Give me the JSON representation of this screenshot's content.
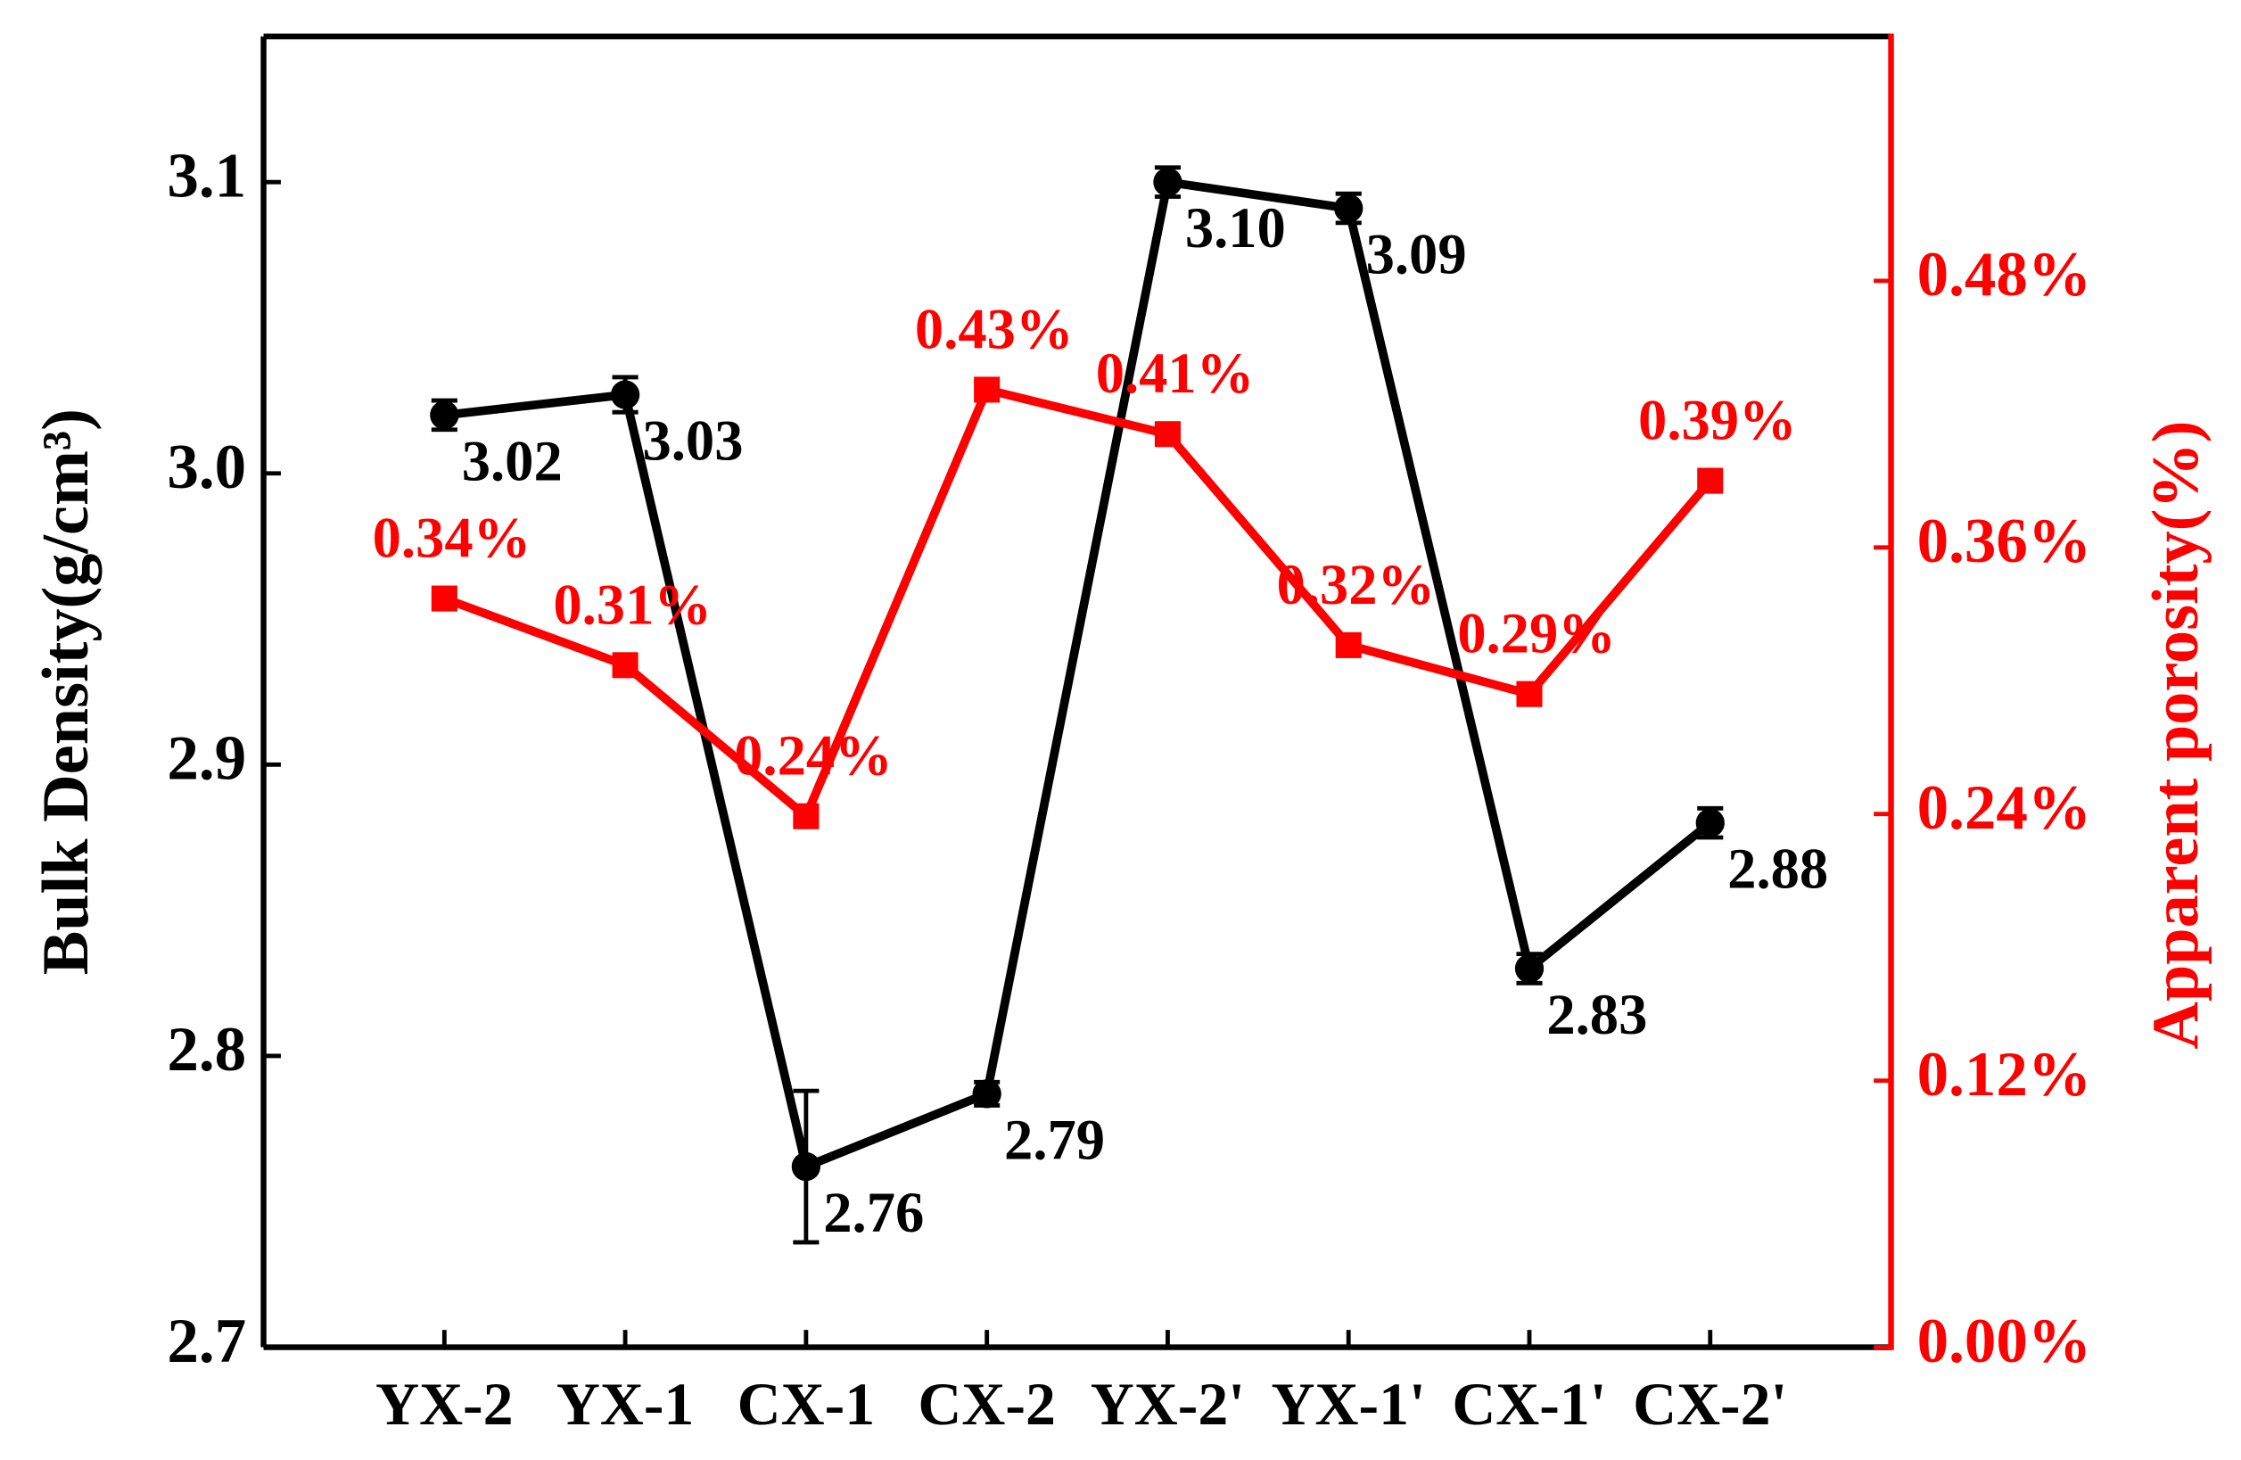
{
  "chart_data": {
    "type": "line",
    "y_label": "Bulk Density(g/cm³)",
    "y2_label": "Apparent porosity(%)",
    "categories": [
      "YX-2",
      "YX-1",
      "CX-1",
      "CX-2",
      "YX-2'",
      "YX-1'",
      "CX-1'",
      "CX-2'"
    ],
    "ylim": [
      2.7,
      3.15
    ],
    "yticks": [
      2.7,
      2.8,
      2.9,
      {
        "value": 3,
        "label": "3.0"
      },
      3.1
    ],
    "y2lim": [
      0,
      0.59
    ],
    "y2ticks": [
      {
        "value": 0,
        "label": "0.00%"
      },
      {
        "value": 0.12,
        "label": "0.12%"
      },
      {
        "value": 0.24,
        "label": "0.24%"
      },
      {
        "value": 0.36,
        "label": "0.36%"
      },
      {
        "value": 0.48,
        "label": "0.48%"
      }
    ],
    "series": [
      {
        "color": "#000000",
        "marker": "circle",
        "values": [
          3.02,
          3.027,
          2.762,
          2.787,
          3.1,
          3.091,
          2.83,
          2.88
        ],
        "errors": [
          0.005,
          0.006,
          0.026,
          0.004,
          0.005,
          0.005,
          0.005,
          0.005
        ],
        "value_labels": [
          "3.02",
          "3.03",
          "2.76",
          "2.79",
          "3.10",
          "3.09",
          "2.83",
          "2.88"
        ]
      },
      {
        "color": "#ff0000",
        "marker": "square",
        "axis": "y2",
        "values": [
          0.337,
          0.307,
          0.239,
          0.431,
          0.411,
          0.316,
          0.294,
          0.39
        ],
        "value_labels": [
          "0.34%",
          "0.31%",
          "0.24%",
          "0.43%",
          "0.41%",
          "0.32%",
          "0.29%",
          "0.39%"
        ]
      }
    ]
  }
}
